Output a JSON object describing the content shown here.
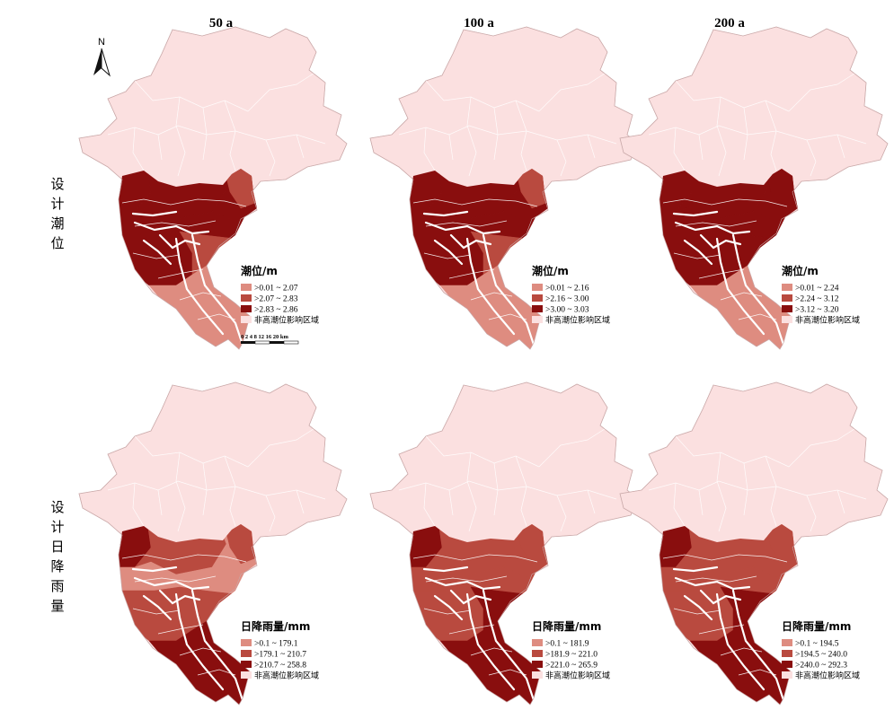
{
  "columns": [
    "50 a",
    "100 a",
    "200 a"
  ],
  "rows": [
    "设计潮位",
    "设计日降雨量"
  ],
  "colors": {
    "background": "#fbe0e0",
    "outline": "#ffffff",
    "class1": "#de8c80",
    "class2": "#b94a3f",
    "class3": "#890e0e"
  },
  "north_arrow": {
    "label": "N",
    "icon": "north-arrow-icon"
  },
  "scale_bar": {
    "ticks": "0 2 4   8  12 16 20 km"
  },
  "panels": [
    {
      "id": "tide-50",
      "legend": {
        "title": "潮位/m",
        "items": [
          {
            "label": ">0.01 ~ 2.07",
            "color": "#de8c80"
          },
          {
            "label": ">2.07 ~ 2.83",
            "color": "#b94a3f"
          },
          {
            "label": ">2.83 ~ 2.86",
            "color": "#890e0e"
          },
          {
            "label": "非高潮位影响区域",
            "color": "#fbe0e0"
          }
        ]
      }
    },
    {
      "id": "tide-100",
      "legend": {
        "title": "潮位/m",
        "items": [
          {
            "label": ">0.01 ~ 2.16",
            "color": "#de8c80"
          },
          {
            "label": ">2.16 ~ 3.00",
            "color": "#b94a3f"
          },
          {
            "label": ">3.00 ~ 3.03",
            "color": "#890e0e"
          },
          {
            "label": "非高潮位影响区域",
            "color": "#fbe0e0"
          }
        ]
      }
    },
    {
      "id": "tide-200",
      "legend": {
        "title": "潮位/m",
        "items": [
          {
            "label": ">0.01 ~ 2.24",
            "color": "#de8c80"
          },
          {
            "label": ">2.24 ~ 3.12",
            "color": "#b94a3f"
          },
          {
            "label": ">3.12 ~ 3.20",
            "color": "#890e0e"
          },
          {
            "label": "非高潮位影响区域",
            "color": "#fbe0e0"
          }
        ]
      }
    },
    {
      "id": "rain-50",
      "legend": {
        "title": "日降雨量/mm",
        "items": [
          {
            "label": ">0.1 ~ 179.1",
            "color": "#de8c80"
          },
          {
            "label": ">179.1 ~ 210.7",
            "color": "#b94a3f"
          },
          {
            "label": ">210.7 ~ 258.8",
            "color": "#890e0e"
          },
          {
            "label": "非高潮位影响区域",
            "color": "#fbe0e0"
          }
        ]
      }
    },
    {
      "id": "rain-100",
      "legend": {
        "title": "日降雨量/mm",
        "items": [
          {
            "label": ">0.1 ~ 181.9",
            "color": "#de8c80"
          },
          {
            "label": ">181.9 ~ 221.0",
            "color": "#b94a3f"
          },
          {
            "label": ">221.0 ~ 265.9",
            "color": "#890e0e"
          },
          {
            "label": "非高潮位影响区域",
            "color": "#fbe0e0"
          }
        ]
      }
    },
    {
      "id": "rain-200",
      "legend": {
        "title": "日降雨量/mm",
        "items": [
          {
            "label": ">0.1 ~ 194.5",
            "color": "#de8c80"
          },
          {
            "label": ">194.5 ~ 240.0",
            "color": "#b94a3f"
          },
          {
            "label": ">240.0 ~ 292.3",
            "color": "#890e0e"
          },
          {
            "label": "非高潮位影响区域",
            "color": "#fbe0e0"
          }
        ]
      }
    }
  ]
}
